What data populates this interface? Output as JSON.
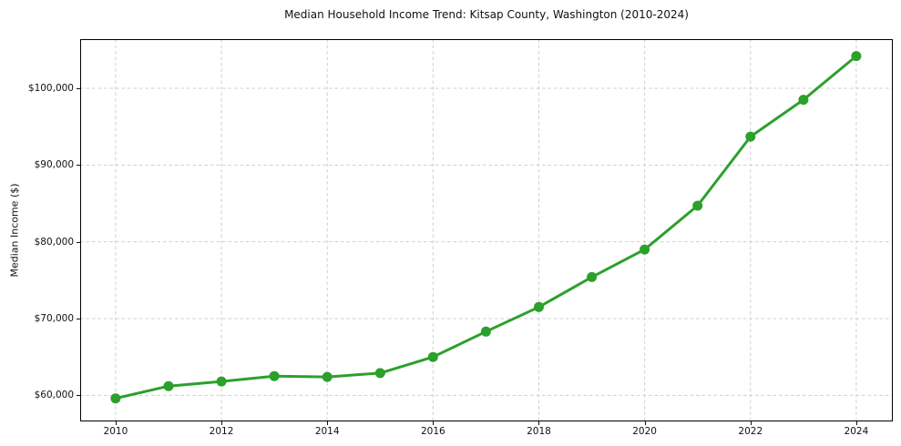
{
  "chart_data": {
    "type": "line",
    "title": "Median Household Income Trend: Kitsap County, Washington (2010-2024)",
    "xlabel": "",
    "ylabel": "Median Income ($)",
    "x": [
      2010,
      2011,
      2012,
      2013,
      2014,
      2015,
      2016,
      2017,
      2018,
      2019,
      2020,
      2021,
      2022,
      2023,
      2024
    ],
    "values": [
      59600,
      61200,
      61800,
      62500,
      62400,
      62900,
      65000,
      68300,
      71500,
      75400,
      79000,
      84700,
      93700,
      98500,
      104200
    ],
    "x_ticks": [
      2010,
      2012,
      2014,
      2016,
      2018,
      2020,
      2022,
      2024
    ],
    "y_ticks": [
      60000,
      70000,
      80000,
      90000,
      100000
    ],
    "y_tick_labels": [
      "$60,000",
      "$70,000",
      "$80,000",
      "$90,000",
      "$100,000"
    ],
    "xlim": [
      2009.33,
      2024.69
    ],
    "ylim": [
      56600,
      106400
    ],
    "grid": true,
    "legend": "none",
    "line_color": "#2ca02c",
    "marker": "circle",
    "marker_color": "#2ca02c",
    "grid_color": "#cfcfcf",
    "spine_color": "#000000",
    "background_color": "#ffffff"
  }
}
